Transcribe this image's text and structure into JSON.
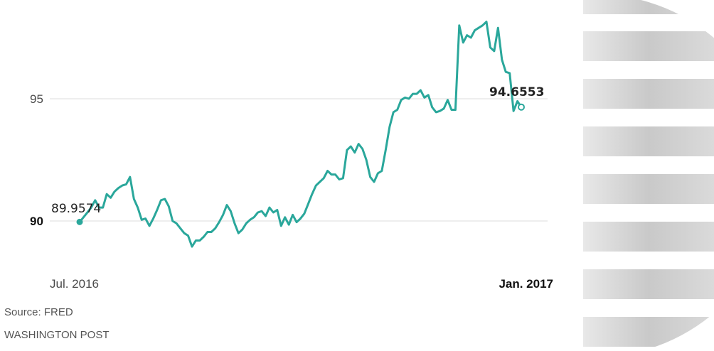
{
  "chart_data": {
    "type": "line",
    "title": "",
    "xlabel": "",
    "ylabel": "",
    "x_tick_labels": [
      "Jul. 2016",
      "Jan. 2017"
    ],
    "y_ticks": [
      {
        "value": 90,
        "label": "90",
        "bold": true
      },
      {
        "value": 95,
        "label": "95",
        "bold": false
      }
    ],
    "ylim": [
      88.8,
      99.1
    ],
    "grid": "horizontal",
    "start_label": "89.9574",
    "end_label": "94.6553",
    "series": [
      {
        "color": "#2aa79b",
        "values": [
          89.96,
          90.15,
          90.35,
          90.55,
          90.85,
          90.55,
          90.55,
          91.1,
          90.95,
          91.2,
          91.35,
          91.45,
          91.5,
          91.8,
          90.9,
          90.55,
          90.05,
          90.1,
          89.8,
          90.1,
          90.45,
          90.85,
          90.9,
          90.6,
          90.0,
          89.9,
          89.7,
          89.5,
          89.4,
          88.95,
          89.2,
          89.2,
          89.35,
          89.55,
          89.55,
          89.7,
          89.95,
          90.25,
          90.65,
          90.4,
          89.9,
          89.5,
          89.65,
          89.9,
          90.05,
          90.15,
          90.35,
          90.4,
          90.2,
          90.55,
          90.35,
          90.45,
          89.8,
          90.15,
          89.85,
          90.25,
          89.95,
          90.1,
          90.3,
          90.7,
          91.1,
          91.45,
          91.6,
          91.75,
          92.05,
          91.9,
          91.9,
          91.7,
          91.75,
          92.9,
          93.05,
          92.8,
          93.15,
          92.95,
          92.5,
          91.8,
          91.6,
          91.95,
          92.05,
          92.9,
          93.85,
          94.45,
          94.55,
          94.95,
          95.05,
          95.0,
          95.2,
          95.2,
          95.35,
          95.05,
          95.15,
          94.65,
          94.45,
          94.5,
          94.6,
          94.95,
          94.55,
          94.55,
          98.0,
          97.3,
          97.6,
          97.5,
          97.8,
          97.9,
          98.0,
          98.15,
          97.1,
          96.95,
          97.9,
          96.6,
          96.1,
          96.05,
          94.5,
          94.9,
          94.66
        ]
      }
    ]
  },
  "footer": {
    "source": "Source: FRED",
    "credit": "WASHINGTON POST"
  }
}
